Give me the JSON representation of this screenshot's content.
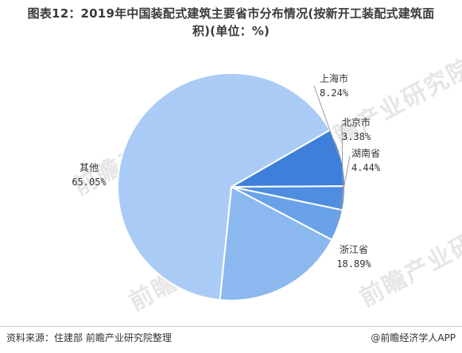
{
  "header": {
    "title_line1": "图表12：2019年中国装配式建筑主要省市分布情况(按新开工装配式建筑面",
    "title_line2": "积)(单位：%)"
  },
  "footer": {
    "source": "资料来源：住建部   前瞻产业研究院整理",
    "brand": "@前瞻经济学人APP"
  },
  "watermark": {
    "text": "前瞻产业研究院"
  },
  "colors": {
    "shanghai": "#3e7fd9",
    "beijing": "#4f8de0",
    "hunan": "#6aa2ea",
    "zhejiang": "#8cb8f0",
    "other": "#a9cbf6"
  },
  "chart_data": {
    "type": "pie",
    "title": "2019年中国装配式建筑主要省市分布情况(按新开工装配式建筑面积)(单位：%)",
    "slices": [
      {
        "label": "上海市",
        "value": 8.24,
        "value_label": "8.24%"
      },
      {
        "label": "北京市",
        "value": 3.38,
        "value_label": "3.38%"
      },
      {
        "label": "湖南省",
        "value": 4.44,
        "value_label": "4.44%"
      },
      {
        "label": "浙江省",
        "value": 18.89,
        "value_label": "18.89%"
      },
      {
        "label": "其他",
        "value": 65.05,
        "value_label": "65.05%"
      }
    ]
  }
}
